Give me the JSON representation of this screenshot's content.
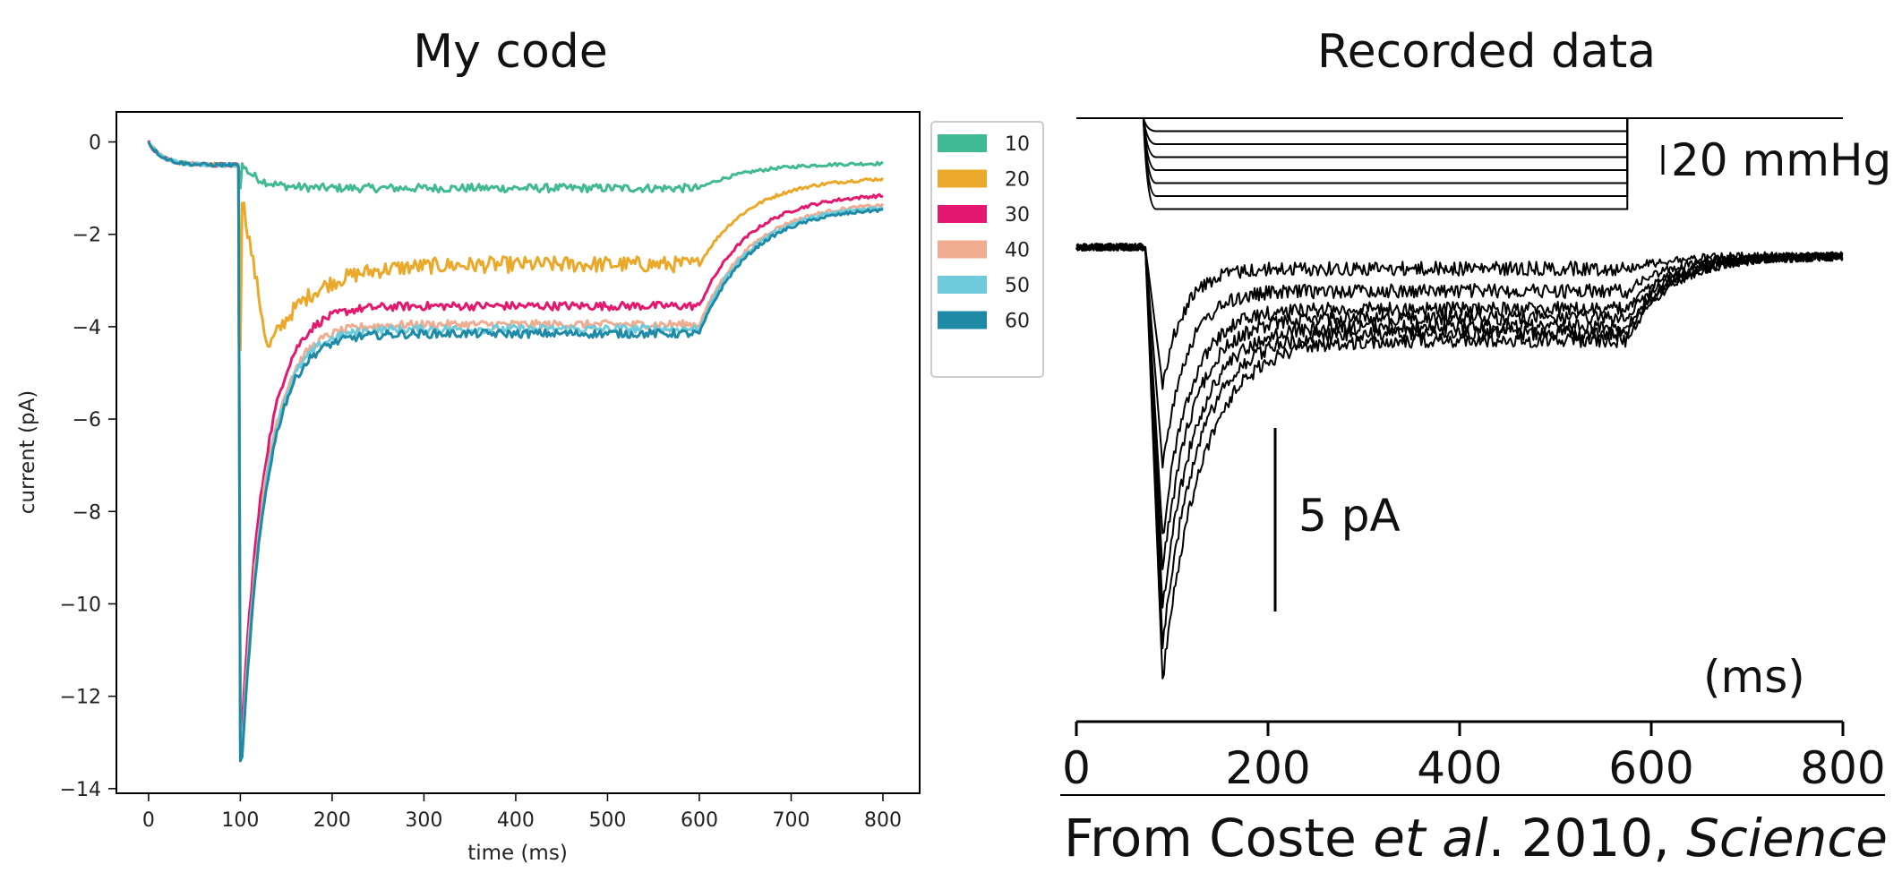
{
  "titles": {
    "left": "My code",
    "right": "Recorded data"
  },
  "source": {
    "prefix": "From Coste ",
    "etal": "et al",
    "middle": ". 2010, ",
    "journal": "Science"
  },
  "chart_data": [
    {
      "type": "line",
      "xlabel": "time (ms)",
      "ylabel": "current (pA)",
      "xlim": [
        -35,
        840
      ],
      "ylim": [
        -14.1,
        0.65
      ],
      "xticks": [
        0,
        100,
        200,
        300,
        400,
        500,
        600,
        700,
        800
      ],
      "yticks": [
        0,
        -2,
        -4,
        -6,
        -8,
        -10,
        -12,
        -14
      ],
      "grid": false,
      "legend": "outside-top-right",
      "series": [
        {
          "name": "10",
          "color": "#41b993",
          "peak": -1.0,
          "plateau": -1.0,
          "end": -0.45
        },
        {
          "name": "20",
          "color": "#eaa92a",
          "peak": -4.5,
          "plateau": -2.65,
          "end": -0.75
        },
        {
          "name": "30",
          "color": "#e2196e",
          "peak": -12.6,
          "plateau": -3.55,
          "end": -1.1
        },
        {
          "name": "40",
          "color": "#efac90",
          "peak": -13.0,
          "plateau": -3.95,
          "end": -1.3
        },
        {
          "name": "50",
          "color": "#6dcbdc",
          "peak": -13.2,
          "plateau": -4.05,
          "end": -1.35
        },
        {
          "name": "60",
          "color": "#1f8aa6",
          "peak": -13.4,
          "plateau": -4.15,
          "end": -1.4
        }
      ]
    },
    {
      "type": "line",
      "xticks": [
        0,
        200,
        400,
        600,
        800
      ],
      "xlabel_unit": "(ms)",
      "scalebar_pressure": "20 mmHg",
      "scalebar_current": "5 pA",
      "stimulus_steps": 7,
      "stimulus_window_ms": [
        70,
        575
      ],
      "traces": 7
    }
  ]
}
